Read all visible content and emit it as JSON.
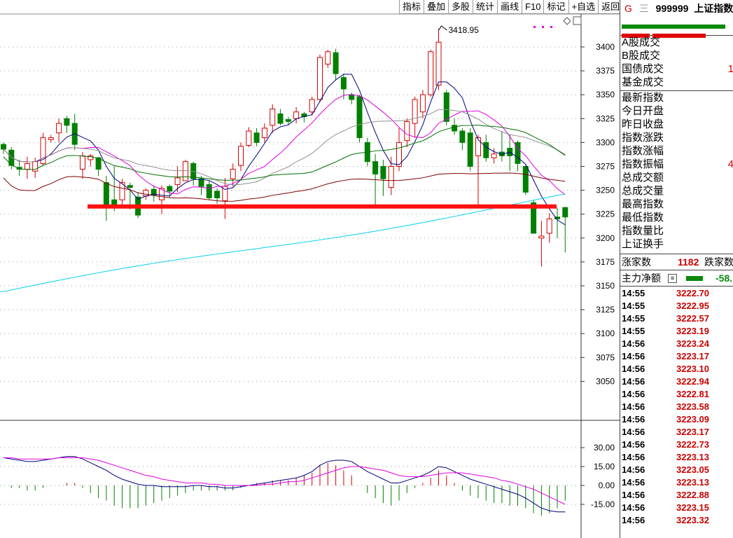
{
  "toolbar": {
    "buttons": [
      "指标",
      "叠加",
      "多股",
      "统计",
      "画线",
      "F10",
      "标记",
      "+自选",
      "返回"
    ]
  },
  "chart": {
    "price_axis_ticks": [
      "3400",
      "3375",
      "3350",
      "3325",
      "3300",
      "3275",
      "3250",
      "3225",
      "3200",
      "3175",
      "3150",
      "3125",
      "3100",
      "3075",
      "3050"
    ],
    "macd_axis_ticks": [
      "30.00",
      "15.00",
      "0.00",
      "-15.00"
    ],
    "high_annotation": "3418.95",
    "support_level": 3233,
    "colors": {
      "up": "#d40000",
      "down": "#008000",
      "ma5": "#000080",
      "ma10": "#e000e0",
      "ma20": "#909090",
      "ma30": "#007000",
      "ma60": "#800000",
      "ma120": "#00d0f0",
      "support_line": "#ff1010"
    }
  },
  "chart_data": {
    "type": "candlestick",
    "candles": [
      [
        3298,
        3293,
        3300,
        3288
      ],
      [
        3292,
        3276,
        3295,
        3272
      ],
      [
        3274,
        3272,
        3282,
        3265
      ],
      [
        3272,
        3278,
        3285,
        3262
      ],
      [
        3270,
        3280,
        3284,
        3263
      ],
      [
        3278,
        3305,
        3310,
        3276
      ],
      [
        3303,
        3305,
        3308,
        3300
      ],
      [
        3310,
        3320,
        3325,
        3300
      ],
      [
        3325,
        3318,
        3328,
        3310
      ],
      [
        3320,
        3298,
        3330,
        3292
      ],
      [
        3272,
        3286,
        3290,
        3262
      ],
      [
        3282,
        3286,
        3288,
        3275
      ],
      [
        3284,
        3272,
        3285,
        3265
      ],
      [
        3258,
        3233,
        3265,
        3218
      ],
      [
        3240,
        3235,
        3275,
        3228
      ],
      [
        3240,
        3258,
        3262,
        3235
      ],
      [
        3255,
        3253,
        3258,
        3230
      ],
      [
        3243,
        3224,
        3248,
        3221
      ],
      [
        3244,
        3250,
        3252,
        3240
      ],
      [
        3251,
        3245,
        3255,
        3238
      ],
      [
        3240,
        3252,
        3255,
        3225
      ],
      [
        3254,
        3249,
        3256,
        3242
      ],
      [
        3256,
        3263,
        3275,
        3248
      ],
      [
        3260,
        3280,
        3282,
        3262
      ],
      [
        3278,
        3262,
        3280,
        3255
      ],
      [
        3262,
        3254,
        3265,
        3245
      ],
      [
        3256,
        3242,
        3260,
        3240
      ],
      [
        3249,
        3242,
        3252,
        3236
      ],
      [
        3239,
        3254,
        3263,
        3220
      ],
      [
        3262,
        3272,
        3278,
        3254
      ],
      [
        3276,
        3296,
        3300,
        3270
      ],
      [
        3297,
        3312,
        3316,
        3295
      ],
      [
        3310,
        3300,
        3315,
        3296
      ],
      [
        3305,
        3315,
        3320,
        3300
      ],
      [
        3318,
        3335,
        3340,
        3310
      ],
      [
        3330,
        3320,
        3335,
        3318
      ],
      [
        3324,
        3322,
        3327,
        3318
      ],
      [
        3325,
        3332,
        3337,
        3320
      ],
      [
        3330,
        3327,
        3332,
        3321
      ],
      [
        3332,
        3345,
        3348,
        3328
      ],
      [
        3345,
        3389,
        3392,
        3342
      ],
      [
        3382,
        3395,
        3397,
        3378
      ],
      [
        3394,
        3372,
        3398,
        3365
      ],
      [
        3368,
        3356,
        3372,
        3345
      ],
      [
        3350,
        3345,
        3352,
        3340
      ],
      [
        3348,
        3305,
        3350,
        3300
      ],
      [
        3300,
        3280,
        3305,
        3275
      ],
      [
        3280,
        3267,
        3288,
        3232
      ],
      [
        3275,
        3262,
        3282,
        3244
      ],
      [
        3253,
        3275,
        3285,
        3245
      ],
      [
        3275,
        3300,
        3315,
        3270
      ],
      [
        3302,
        3322,
        3325,
        3295
      ],
      [
        3320,
        3345,
        3348,
        3305
      ],
      [
        3332,
        3350,
        3355,
        3325
      ],
      [
        3350,
        3395,
        3397,
        3348
      ],
      [
        3360,
        3405,
        3419,
        3355
      ],
      [
        3352,
        3322,
        3355,
        3318
      ],
      [
        3318,
        3312,
        3325,
        3308
      ],
      [
        3312,
        3300,
        3315,
        3292
      ],
      [
        3310,
        3275,
        3315,
        3270
      ],
      [
        3286,
        3305,
        3308,
        3235
      ],
      [
        3300,
        3284,
        3308,
        3280
      ],
      [
        3284,
        3288,
        3294,
        3278
      ],
      [
        3290,
        3286,
        3312,
        3280
      ],
      [
        3294,
        3286,
        3308,
        3270
      ],
      [
        3300,
        3278,
        3302,
        3270
      ],
      [
        3275,
        3248,
        3276,
        3245
      ],
      [
        3237,
        3205,
        3240,
        3205
      ],
      [
        3200,
        3202,
        3218,
        3170
      ],
      [
        3205,
        3220,
        3226,
        3195
      ],
      [
        3222,
        3220,
        3232,
        3200
      ],
      [
        3232,
        3222,
        3232,
        3185
      ]
    ],
    "macd_dif": [
      22,
      21,
      20,
      19,
      19,
      20,
      21,
      22,
      23,
      23,
      21,
      18,
      15,
      12,
      8,
      5,
      3,
      1,
      0,
      0,
      -1,
      -1,
      -1,
      -1,
      0,
      0,
      -1,
      -1,
      -2,
      -2,
      -1,
      0,
      1,
      2,
      3,
      4,
      5,
      6,
      8,
      11,
      16,
      19,
      20,
      20,
      19,
      15,
      11,
      8,
      5,
      2,
      2,
      4,
      6,
      8,
      11,
      15,
      14,
      11,
      8,
      5,
      3,
      1,
      -1,
      -3,
      -5,
      -7,
      -10,
      -14,
      -18,
      -20,
      -21,
      -21
    ],
    "macd_dea": [
      22,
      22,
      21,
      21,
      21,
      21,
      21,
      22,
      22,
      22,
      22,
      21,
      20,
      18,
      16,
      14,
      12,
      10,
      8,
      7,
      5,
      4,
      3,
      2,
      2,
      2,
      1,
      1,
      0,
      0,
      0,
      0,
      0,
      1,
      1,
      2,
      3,
      3,
      4,
      6,
      8,
      10,
      12,
      14,
      15,
      15,
      14,
      13,
      12,
      10,
      8,
      7,
      7,
      7,
      8,
      9,
      10,
      10,
      10,
      9,
      8,
      7,
      6,
      4,
      3,
      1,
      -1,
      -3,
      -6,
      -9,
      -12,
      -15
    ],
    "support_level": 3233,
    "annotation": "3418.95"
  },
  "panel": {
    "header": {
      "g_mark": "G",
      "menu_mark": "三",
      "code": "999999",
      "name": "上证指数"
    },
    "trade_rows": [
      {
        "label": "A股成交",
        "value": ""
      },
      {
        "label": "B股成交",
        "value": ""
      },
      {
        "label": "国债成交",
        "value": "1"
      },
      {
        "label": "基金成交",
        "value": ""
      }
    ],
    "index_rows": [
      {
        "label": "最新指数",
        "value": ""
      },
      {
        "label": "今日开盘",
        "value": ""
      },
      {
        "label": "昨日收盘",
        "value": ""
      },
      {
        "label": "指数涨跌",
        "value": ""
      },
      {
        "label": "指数涨幅",
        "value": ""
      },
      {
        "label": "指数振幅",
        "value": "4"
      },
      {
        "label": "总成交额",
        "value": ""
      },
      {
        "label": "总成交量",
        "value": ""
      },
      {
        "label": "最高指数",
        "value": ""
      },
      {
        "label": "最低指数",
        "value": ""
      },
      {
        "label": "指数量比",
        "value": ""
      },
      {
        "label": "上证换手",
        "value": ""
      }
    ],
    "advance": {
      "up_label": "涨家数",
      "up_count": "1182",
      "down_label": "跌家数"
    },
    "flow": {
      "label": "主力净额",
      "value": "-58."
    },
    "ticks": [
      {
        "time": "14:55",
        "price": "3222.70"
      },
      {
        "time": "14:55",
        "price": "3222.95"
      },
      {
        "time": "14:55",
        "price": "3222.57"
      },
      {
        "time": "14:55",
        "price": "3223.19"
      },
      {
        "time": "14:56",
        "price": "3223.24"
      },
      {
        "time": "14:56",
        "price": "3223.17"
      },
      {
        "time": "14:56",
        "price": "3223.10"
      },
      {
        "time": "14:56",
        "price": "3222.94"
      },
      {
        "time": "14:56",
        "price": "3222.81"
      },
      {
        "time": "14:56",
        "price": "3223.58"
      },
      {
        "time": "14:56",
        "price": "3223.09"
      },
      {
        "time": "14:56",
        "price": "3223.17"
      },
      {
        "time": "14:56",
        "price": "3222.73"
      },
      {
        "time": "14:56",
        "price": "3223.13"
      },
      {
        "time": "14:56",
        "price": "3223.05"
      },
      {
        "time": "14:56",
        "price": "3223.13"
      },
      {
        "time": "14:56",
        "price": "3222.88"
      },
      {
        "time": "14:56",
        "price": "3223.15"
      },
      {
        "time": "14:56",
        "price": "3223.32"
      }
    ]
  }
}
